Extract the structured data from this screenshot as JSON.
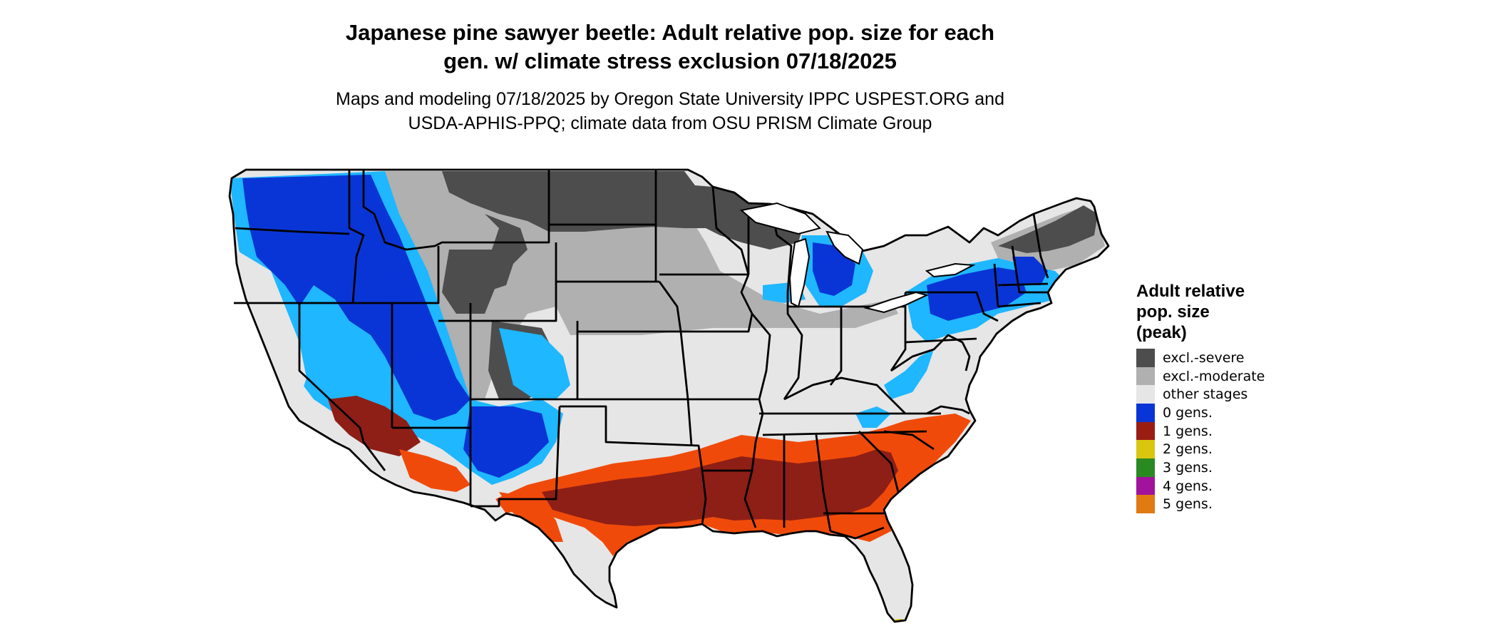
{
  "title": {
    "line1": "Japanese pine sawyer beetle: Adult relative pop. size for each",
    "line2": "gen. w/ climate stress exclusion 07/18/2025"
  },
  "subtitle": {
    "line1": "Maps and modeling 07/18/2025 by Oregon State University IPPC USPEST.ORG and",
    "line2": "USDA-APHIS-PPQ; climate data from OSU PRISM Climate Group"
  },
  "legend": {
    "title_line1": "Adult relative",
    "title_line2": "pop. size",
    "title_line3": "(peak)",
    "items": [
      {
        "label": "excl.-severe",
        "color": "#4d4d4d"
      },
      {
        "label": "excl.-moderate",
        "color": "#b0b0b0"
      },
      {
        "label": "other stages",
        "color": "#e6e6e6"
      },
      {
        "label": "0 gens.",
        "color": "#0a35d6"
      },
      {
        "label": "1 gens.",
        "color": "#9a1d14"
      },
      {
        "label": "2 gens.",
        "color": "#d9c60f"
      },
      {
        "label": "3 gens.",
        "color": "#2a8a22"
      },
      {
        "label": "4 gens.",
        "color": "#a0139a"
      },
      {
        "label": "5 gens.",
        "color": "#e07a12"
      }
    ]
  },
  "map": {
    "colors": {
      "excl_severe": "#4d4d4d",
      "excl_moderate": "#b0b0b0",
      "other_stages": "#e6e6e6",
      "gen0_dark": "#0a35d6",
      "gen0_light": "#1fb7ff",
      "gen1_dark": "#8e1f16",
      "gen1_light": "#f04a0a",
      "gen2": "#d9c60f",
      "border": "#000000"
    }
  }
}
